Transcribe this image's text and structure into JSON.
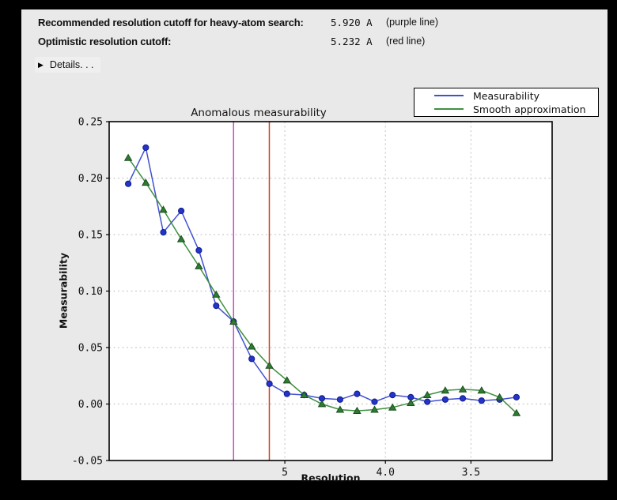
{
  "window": {
    "bg_color": "#e9e9e9",
    "frame_color": "#000000"
  },
  "header": {
    "rows": [
      {
        "label": "Recommended resolution cutoff for heavy-atom search:",
        "value": "5.920 A",
        "note": "(purple line)"
      },
      {
        "label": "Optimistic resolution cutoff:",
        "value": "5.232 A",
        "note": "(red line)"
      }
    ],
    "details_label": "Details. . .",
    "disclosure_icon": "right-triangle"
  },
  "chart_data": {
    "type": "line",
    "title": "Anomalous measurability",
    "xlabel": "Resolution",
    "ylabel": "Measurability",
    "x_scale": "inverse_d_squared",
    "x_resolution_A": [
      14.2,
      10.6,
      8.83,
      7.71,
      6.94,
      6.37,
      5.92,
      5.54,
      5.23,
      4.97,
      4.75,
      4.55,
      4.37,
      4.22,
      4.08,
      3.95,
      3.83,
      3.73,
      3.63,
      3.54,
      3.45,
      3.37,
      3.3
    ],
    "series": [
      {
        "name": "Measurability",
        "color": "#4150d0",
        "marker": "circle",
        "marker_fill": "#2334c8",
        "marker_edge": "#101c8a",
        "values": [
          0.195,
          0.227,
          0.152,
          0.171,
          0.136,
          0.087,
          0.073,
          0.04,
          0.018,
          0.009,
          0.008,
          0.005,
          0.004,
          0.009,
          0.002,
          0.008,
          0.006,
          0.002,
          0.004,
          0.005,
          0.003,
          0.004,
          0.006
        ]
      },
      {
        "name": "Smooth approximation",
        "color": "#3f9040",
        "marker": "triangle",
        "marker_fill": "#2f7b33",
        "marker_edge": "#1b4f1e",
        "values": [
          0.218,
          0.196,
          0.172,
          0.146,
          0.122,
          0.097,
          0.073,
          0.051,
          0.034,
          0.021,
          0.008,
          0.0,
          -0.005,
          -0.006,
          -0.005,
          -0.003,
          0.001,
          0.008,
          0.012,
          0.013,
          0.012,
          0.006,
          -0.008
        ]
      }
    ],
    "vlines": [
      {
        "name": "purple line",
        "resolution_A": 5.92,
        "color": "#c44fc4"
      },
      {
        "name": "red line",
        "resolution_A": 5.232,
        "color": "#c8431f"
      }
    ],
    "x_ticks": [
      {
        "label": "5",
        "resolution_A": 5.0
      },
      {
        "label": "4.0",
        "resolution_A": 4.0
      },
      {
        "label": "3.5",
        "resolution_A": 3.5
      }
    ],
    "y_ticks": [
      "0.25",
      "0.20",
      "0.15",
      "0.10",
      "0.05",
      "0.00",
      "-0.05"
    ],
    "ylim": [
      -0.05,
      0.25
    ],
    "x_s_range": [
      0.0007,
      0.0998
    ],
    "grid": true,
    "grid_color": "#cccccc",
    "plot_bg": "#ffffff",
    "legend_position": "top-right"
  }
}
